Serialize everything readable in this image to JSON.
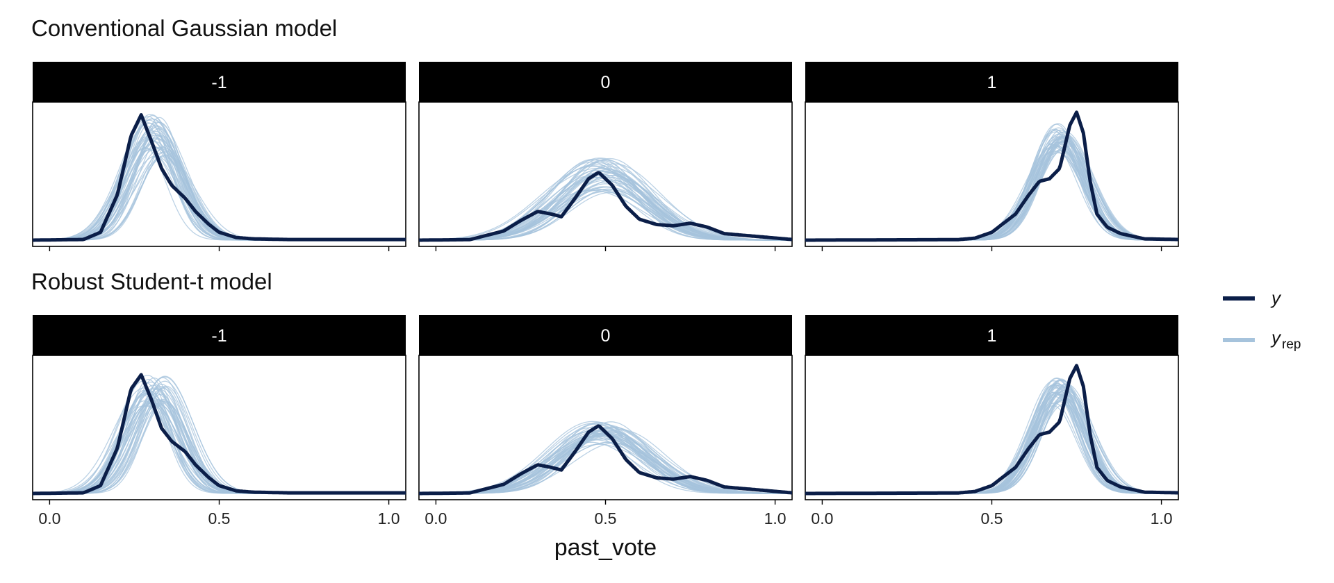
{
  "chart_data": {
    "type": "line",
    "xlabel": "past_vote",
    "xlim": [
      -0.05,
      1.05
    ],
    "xticks": [
      0.0,
      0.5,
      1.0
    ],
    "xtick_labels": [
      "0.0",
      "0.5",
      "1.0"
    ],
    "panels": [
      "-1",
      "0",
      "1"
    ],
    "legend": {
      "position": "right",
      "items": [
        {
          "key": "y",
          "label": "y",
          "color": "#0b1e48"
        },
        {
          "key": "yrep",
          "label": "y",
          "subscript": "rep",
          "color": "#a6c3dc"
        }
      ]
    },
    "rows": [
      {
        "title": "Conventional Gaussian model",
        "panels": [
          {
            "label": "-1",
            "y": {
              "x": [
                -0.05,
                0.1,
                0.15,
                0.2,
                0.24,
                0.27,
                0.3,
                0.33,
                0.36,
                0.4,
                0.43,
                0.47,
                0.5,
                0.55,
                0.6,
                0.7,
                1.05
              ],
              "d": [
                0,
                0.005,
                0.06,
                0.35,
                0.8,
                0.96,
                0.76,
                0.55,
                0.42,
                0.32,
                0.22,
                0.12,
                0.06,
                0.02,
                0.01,
                0.005,
                0.005
              ]
            },
            "yrep": {
              "mu": 0.31,
              "sigma": 0.075,
              "peak": 0.76,
              "mu_jitter": 0.035,
              "sigma_jitter": 0.014,
              "peak_range": [
                0.64,
                0.98
              ]
            }
          },
          {
            "label": "0",
            "y": {
              "x": [
                -0.05,
                0.1,
                0.2,
                0.25,
                0.3,
                0.34,
                0.37,
                0.41,
                0.45,
                0.48,
                0.52,
                0.56,
                0.6,
                0.65,
                0.7,
                0.75,
                0.8,
                0.85,
                1.05
              ],
              "d": [
                0,
                0.004,
                0.07,
                0.15,
                0.22,
                0.2,
                0.18,
                0.32,
                0.47,
                0.52,
                0.42,
                0.26,
                0.16,
                0.12,
                0.11,
                0.13,
                0.1,
                0.05,
                0.005
              ]
            },
            "yrep": {
              "mu": 0.49,
              "sigma": 0.13,
              "peak": 0.44,
              "mu_jitter": 0.035,
              "sigma_jitter": 0.018,
              "peak_range": [
                0.36,
                0.64
              ]
            }
          },
          {
            "label": "1",
            "y": {
              "x": [
                -0.05,
                0.4,
                0.45,
                0.5,
                0.53,
                0.57,
                0.61,
                0.64,
                0.67,
                0.7,
                0.73,
                0.75,
                0.77,
                0.79,
                0.81,
                0.84,
                0.88,
                0.95,
                1.05
              ],
              "d": [
                0,
                0.004,
                0.015,
                0.06,
                0.12,
                0.2,
                0.35,
                0.45,
                0.47,
                0.55,
                0.88,
                0.98,
                0.82,
                0.45,
                0.2,
                0.1,
                0.05,
                0.01,
                0.005
              ]
            },
            "yrep": {
              "mu": 0.7,
              "sigma": 0.075,
              "peak": 0.76,
              "mu_jitter": 0.02,
              "sigma_jitter": 0.009,
              "peak_range": [
                0.68,
                0.86
              ]
            }
          }
        ]
      },
      {
        "title": "Robust Student-t model",
        "panels": [
          {
            "label": "-1",
            "y": {
              "x": [
                -0.05,
                0.1,
                0.15,
                0.2,
                0.24,
                0.27,
                0.3,
                0.33,
                0.36,
                0.4,
                0.43,
                0.47,
                0.5,
                0.55,
                0.6,
                0.7,
                1.05
              ],
              "d": [
                0,
                0.005,
                0.06,
                0.35,
                0.8,
                0.91,
                0.72,
                0.5,
                0.4,
                0.32,
                0.22,
                0.12,
                0.06,
                0.02,
                0.01,
                0.005,
                0.005
              ]
            },
            "yrep": {
              "mu": 0.31,
              "sigma": 0.075,
              "peak": 0.76,
              "mu_jitter": 0.035,
              "sigma_jitter": 0.014,
              "peak_range": [
                0.66,
                0.9
              ]
            }
          },
          {
            "label": "0",
            "y": {
              "x": [
                -0.05,
                0.1,
                0.2,
                0.25,
                0.3,
                0.34,
                0.37,
                0.41,
                0.45,
                0.48,
                0.52,
                0.56,
                0.6,
                0.65,
                0.7,
                0.75,
                0.8,
                0.85,
                1.05
              ],
              "d": [
                0,
                0.004,
                0.07,
                0.15,
                0.22,
                0.2,
                0.18,
                0.32,
                0.47,
                0.52,
                0.42,
                0.26,
                0.16,
                0.12,
                0.11,
                0.13,
                0.1,
                0.05,
                0.005
              ]
            },
            "yrep": {
              "mu": 0.49,
              "sigma": 0.13,
              "peak": 0.44,
              "mu_jitter": 0.035,
              "sigma_jitter": 0.018,
              "peak_range": [
                0.38,
                0.56
              ]
            }
          },
          {
            "label": "1",
            "y": {
              "x": [
                -0.05,
                0.4,
                0.45,
                0.5,
                0.53,
                0.57,
                0.61,
                0.64,
                0.67,
                0.7,
                0.73,
                0.75,
                0.77,
                0.79,
                0.81,
                0.84,
                0.88,
                0.95,
                1.05
              ],
              "d": [
                0,
                0.004,
                0.015,
                0.06,
                0.12,
                0.2,
                0.35,
                0.45,
                0.47,
                0.55,
                0.88,
                0.98,
                0.82,
                0.45,
                0.2,
                0.1,
                0.05,
                0.01,
                0.005
              ]
            },
            "yrep": {
              "mu": 0.7,
              "sigma": 0.075,
              "peak": 0.76,
              "mu_jitter": 0.02,
              "sigma_jitter": 0.009,
              "peak_range": [
                0.68,
                0.86
              ]
            }
          }
        ]
      }
    ]
  }
}
